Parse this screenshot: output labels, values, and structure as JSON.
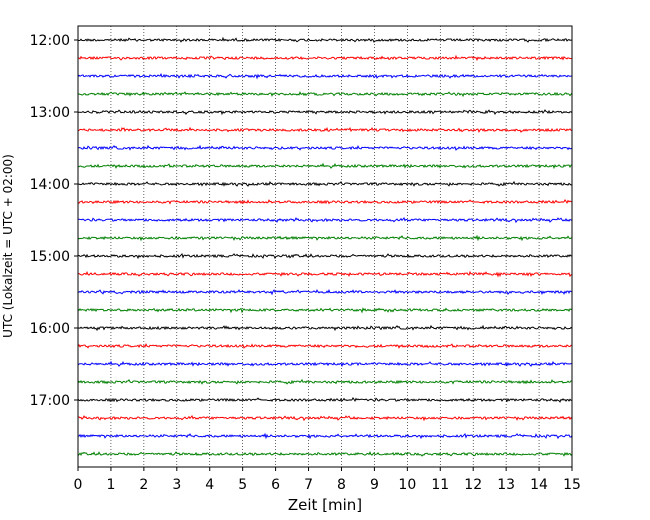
{
  "chart_data": {
    "type": "line",
    "title": "",
    "xlabel": "Zeit  [min]",
    "ylabel": "UTC (Lokalzeit = UTC + 02:00)",
    "xlim": [
      0,
      15
    ],
    "x_ticks": [
      0,
      1,
      2,
      3,
      4,
      5,
      6,
      7,
      8,
      9,
      10,
      11,
      12,
      13,
      14,
      15
    ],
    "y_ticks": [
      "12:00",
      "13:00",
      "14:00",
      "15:00",
      "16:00",
      "17:00"
    ],
    "grid": "vertical-dotted",
    "trace_colors": [
      "#000000",
      "#ff0000",
      "#0000ff",
      "#008000"
    ],
    "trace_start_times": [
      "12:00",
      "12:15",
      "12:30",
      "12:45",
      "13:00",
      "13:15",
      "13:30",
      "13:45",
      "14:00",
      "14:15",
      "14:30",
      "14:45",
      "15:00",
      "15:15",
      "15:30",
      "15:45",
      "16:00",
      "16:15",
      "16:30",
      "16:45",
      "17:00",
      "17:15",
      "17:30",
      "17:45"
    ],
    "trace_amplitude_note": "low-amplitude seismic noise, no distinct events"
  }
}
